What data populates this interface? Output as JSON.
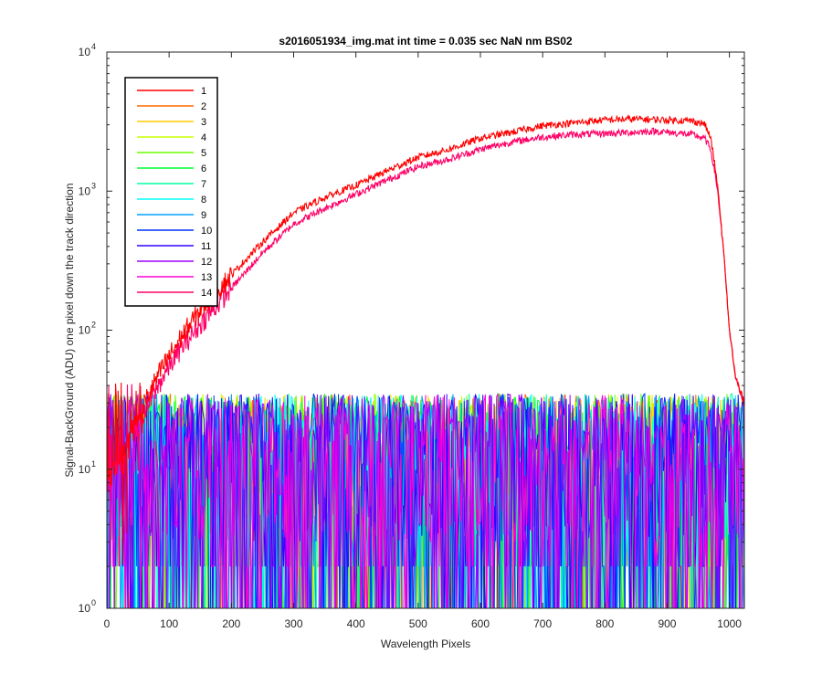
{
  "chart_data": {
    "type": "line",
    "title": "s2016051934_img.mat int time = 0.035 sec  NaN nm BS02",
    "xlabel": "Wavelength Pixels",
    "ylabel": "Signal-BackGround (ADU) one pixel down the track direction",
    "xlim": [
      0,
      1024
    ],
    "ylim": [
      1,
      10000
    ],
    "yscale": "log",
    "xticks": [
      0,
      100,
      200,
      300,
      400,
      500,
      600,
      700,
      800,
      900,
      1000
    ],
    "yticks": [
      {
        "base": "10",
        "exp": "0",
        "value": 1
      },
      {
        "base": "10",
        "exp": "1",
        "value": 10
      },
      {
        "base": "10",
        "exp": "2",
        "value": 100
      },
      {
        "base": "10",
        "exp": "3",
        "value": 1000
      },
      {
        "base": "10",
        "exp": "4",
        "value": 10000
      }
    ],
    "grid": false,
    "legend_position": "top-left",
    "series": [
      {
        "name": "1",
        "color": "#ff0000",
        "kind": "signal",
        "x": [
          0,
          20,
          40,
          60,
          80,
          100,
          120,
          150,
          200,
          250,
          300,
          350,
          400,
          450,
          500,
          550,
          600,
          650,
          700,
          750,
          800,
          850,
          900,
          940,
          960,
          970,
          980,
          990,
          1000,
          1010,
          1024
        ],
        "y": [
          8,
          12,
          20,
          30,
          45,
          65,
          90,
          140,
          250,
          430,
          700,
          900,
          1100,
          1400,
          1750,
          2000,
          2400,
          2650,
          2950,
          3100,
          3250,
          3300,
          3250,
          3200,
          3050,
          2400,
          1200,
          400,
          100,
          45,
          30
        ]
      },
      {
        "name": "2",
        "color": "#ff6a00",
        "kind": "noise"
      },
      {
        "name": "3",
        "color": "#ffcc00",
        "kind": "noise"
      },
      {
        "name": "4",
        "color": "#c8ff00",
        "kind": "noise"
      },
      {
        "name": "5",
        "color": "#66ff00",
        "kind": "noise"
      },
      {
        "name": "6",
        "color": "#00ff33",
        "kind": "noise"
      },
      {
        "name": "7",
        "color": "#00ffa0",
        "kind": "noise"
      },
      {
        "name": "8",
        "color": "#00ffff",
        "kind": "noise"
      },
      {
        "name": "9",
        "color": "#00a0ff",
        "kind": "noise"
      },
      {
        "name": "10",
        "color": "#0033ff",
        "kind": "noise"
      },
      {
        "name": "11",
        "color": "#3300ff",
        "kind": "noise"
      },
      {
        "name": "12",
        "color": "#a000ff",
        "kind": "noise"
      },
      {
        "name": "13",
        "color": "#ff00d8",
        "kind": "noise"
      },
      {
        "name": "14",
        "color": "#ff0066",
        "kind": "signal",
        "x": [
          0,
          20,
          40,
          60,
          80,
          100,
          120,
          150,
          200,
          250,
          300,
          350,
          400,
          450,
          500,
          550,
          600,
          650,
          700,
          750,
          800,
          850,
          880,
          900,
          940,
          960,
          970,
          980,
          990,
          1000,
          1010,
          1024
        ],
        "y": [
          8,
          11,
          17,
          25,
          38,
          55,
          75,
          110,
          200,
          360,
          580,
          750,
          950,
          1200,
          1500,
          1700,
          2000,
          2250,
          2450,
          2550,
          2600,
          2650,
          2700,
          2650,
          2550,
          2400,
          2000,
          1100,
          400,
          100,
          45,
          30
        ]
      }
    ]
  }
}
